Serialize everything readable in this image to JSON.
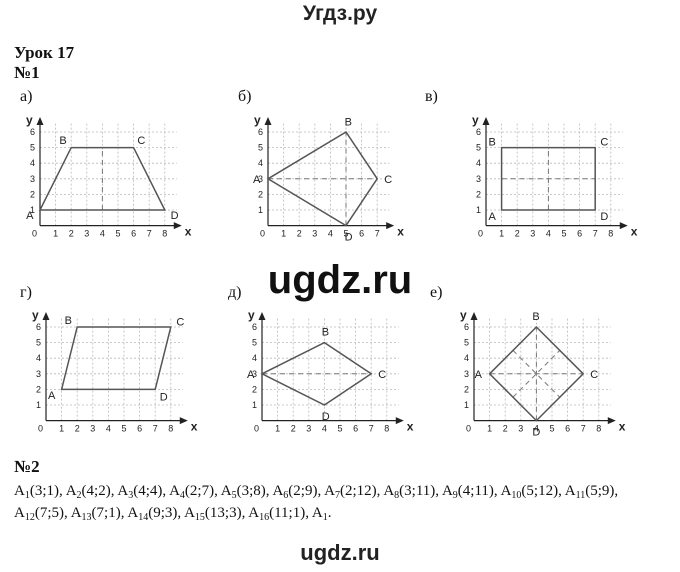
{
  "site_title": "Угдз.ру",
  "lesson_title": "Урок 17",
  "task1_label": "№1",
  "task2_label": "№2",
  "watermark": "ugdz.ru",
  "footer": "ugdz.ru",
  "axis_names": {
    "x": "x",
    "y": "y"
  },
  "panels": [
    {
      "id": "a",
      "label": "а)",
      "xmax": 8,
      "ymax": 6,
      "vertices": [
        {
          "name": "A",
          "x": 0,
          "y": 1
        },
        {
          "name": "B",
          "x": 2,
          "y": 5
        },
        {
          "name": "C",
          "x": 6,
          "y": 5
        },
        {
          "name": "D",
          "x": 8,
          "y": 1
        }
      ],
      "dashed": [
        [
          [
            4,
            1
          ],
          [
            4,
            5
          ]
        ]
      ]
    },
    {
      "id": "b",
      "label": "б)",
      "xmax": 7,
      "ymax": 6,
      "vertices": [
        {
          "name": "A",
          "x": 0,
          "y": 3
        },
        {
          "name": "B",
          "x": 5,
          "y": 6
        },
        {
          "name": "C",
          "x": 7,
          "y": 3
        },
        {
          "name": "D",
          "x": 5,
          "y": 0
        }
      ],
      "dashed": [
        [
          [
            0,
            3
          ],
          [
            7,
            3
          ]
        ],
        [
          [
            5,
            0
          ],
          [
            5,
            6
          ]
        ]
      ]
    },
    {
      "id": "v",
      "label": "в)",
      "xmax": 8,
      "ymax": 6,
      "vertices": [
        {
          "name": "A",
          "x": 1,
          "y": 1
        },
        {
          "name": "B",
          "x": 1,
          "y": 5
        },
        {
          "name": "C",
          "x": 7,
          "y": 5
        },
        {
          "name": "D",
          "x": 7,
          "y": 1
        }
      ],
      "dashed": [
        [
          [
            1,
            3
          ],
          [
            7,
            3
          ]
        ],
        [
          [
            4,
            1
          ],
          [
            4,
            5
          ]
        ]
      ]
    },
    {
      "id": "g",
      "label": "г)",
      "xmax": 8,
      "ymax": 6,
      "vertices": [
        {
          "name": "A",
          "x": 1,
          "y": 2
        },
        {
          "name": "B",
          "x": 2,
          "y": 6
        },
        {
          "name": "C",
          "x": 8,
          "y": 6
        },
        {
          "name": "D",
          "x": 7,
          "y": 2
        }
      ],
      "dashed": []
    },
    {
      "id": "d",
      "label": "д)",
      "xmax": 8,
      "ymax": 6,
      "vertices": [
        {
          "name": "A",
          "x": 0,
          "y": 3
        },
        {
          "name": "B",
          "x": 4,
          "y": 5
        },
        {
          "name": "C",
          "x": 7,
          "y": 3
        },
        {
          "name": "D",
          "x": 4,
          "y": 1
        }
      ],
      "dashed": [
        [
          [
            0,
            3
          ],
          [
            7,
            3
          ]
        ]
      ]
    },
    {
      "id": "e",
      "label": "е)",
      "xmax": 8,
      "ymax": 6,
      "vertices": [
        {
          "name": "A",
          "x": 1,
          "y": 3
        },
        {
          "name": "B",
          "x": 4,
          "y": 6
        },
        {
          "name": "C",
          "x": 7,
          "y": 3
        },
        {
          "name": "D",
          "x": 4,
          "y": 0
        }
      ],
      "dashed": [
        [
          [
            1,
            3
          ],
          [
            7,
            3
          ]
        ],
        [
          [
            4,
            0
          ],
          [
            4,
            6
          ]
        ],
        [
          [
            2.5,
            1.5
          ],
          [
            5.5,
            4.5
          ]
        ],
        [
          [
            2.5,
            4.5
          ],
          [
            5.5,
            1.5
          ]
        ]
      ]
    }
  ],
  "points": [
    {
      "i": "1",
      "c": "(3;1)"
    },
    {
      "i": "2",
      "c": "(4;2)"
    },
    {
      "i": "3",
      "c": "(4;4)"
    },
    {
      "i": "4",
      "c": "(2;7)"
    },
    {
      "i": "5",
      "c": "(3;8)"
    },
    {
      "i": "6",
      "c": "(2;9)"
    },
    {
      "i": "7",
      "c": "(2;12)"
    },
    {
      "i": "8",
      "c": "(3;11)"
    },
    {
      "i": "9",
      "c": "(4;11)"
    },
    {
      "i": "10",
      "c": "(5;12)"
    },
    {
      "i": "11",
      "c": "(5;9)"
    },
    {
      "i": "12",
      "c": "(7;5)"
    },
    {
      "i": "13",
      "c": "(7;1)"
    },
    {
      "i": "14",
      "c": "(9;3)"
    },
    {
      "i": "15",
      "c": "(13;3)"
    },
    {
      "i": "16",
      "c": "(11;1)"
    }
  ],
  "points_end": "A",
  "point_letter": "A"
}
